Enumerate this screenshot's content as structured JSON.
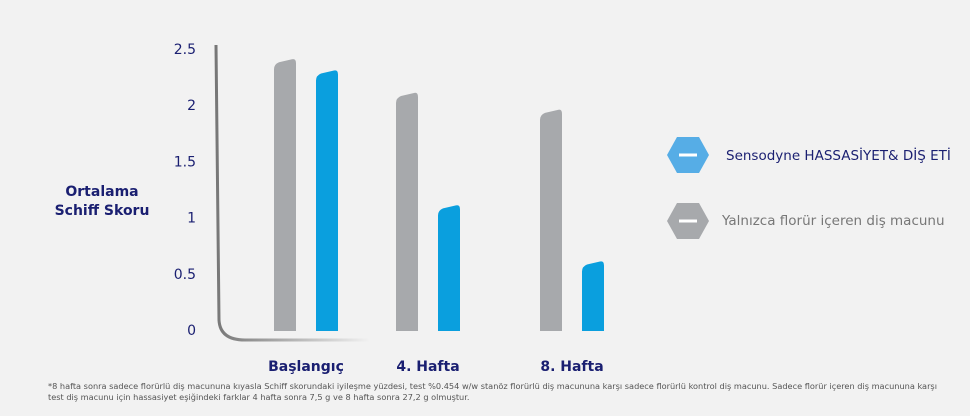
{
  "chart_data": {
    "type": "bar",
    "y_label": [
      "Ortalama",
      "Schiff Skoru"
    ],
    "categories": [
      "Başlangıç",
      "4. Hafta",
      "8. Hafta"
    ],
    "series": [
      {
        "name": "Yalnızca florür içeren diş macunu",
        "color": "#a7a9ac",
        "values": [
          2.4,
          2.1,
          1.95
        ]
      },
      {
        "name": "Sensodyne HASSASİYET& DİŞ ETİ",
        "color": "#0a9fde",
        "values": [
          2.3,
          1.1,
          0.6
        ]
      }
    ],
    "ylim": [
      0,
      2.5
    ],
    "yticks": [
      0,
      0.5,
      1,
      1.5,
      2,
      2.5
    ],
    "footnote": "*8 hafta sonra sadece florürlü diş macununa kıyasla Schiff skorundaki iyileşme yüzdesi, test %0.454 w/w stanöz florürlü diş macununa karşı sadece florürlü kontrol diş macunu. Sadece florür içeren diş macununa karşı test diş macunu için hassasiyet eşiğindeki farklar 4 hafta sonra 7,5 g ve 8 hafta sonra 27,2 g olmuştur."
  }
}
